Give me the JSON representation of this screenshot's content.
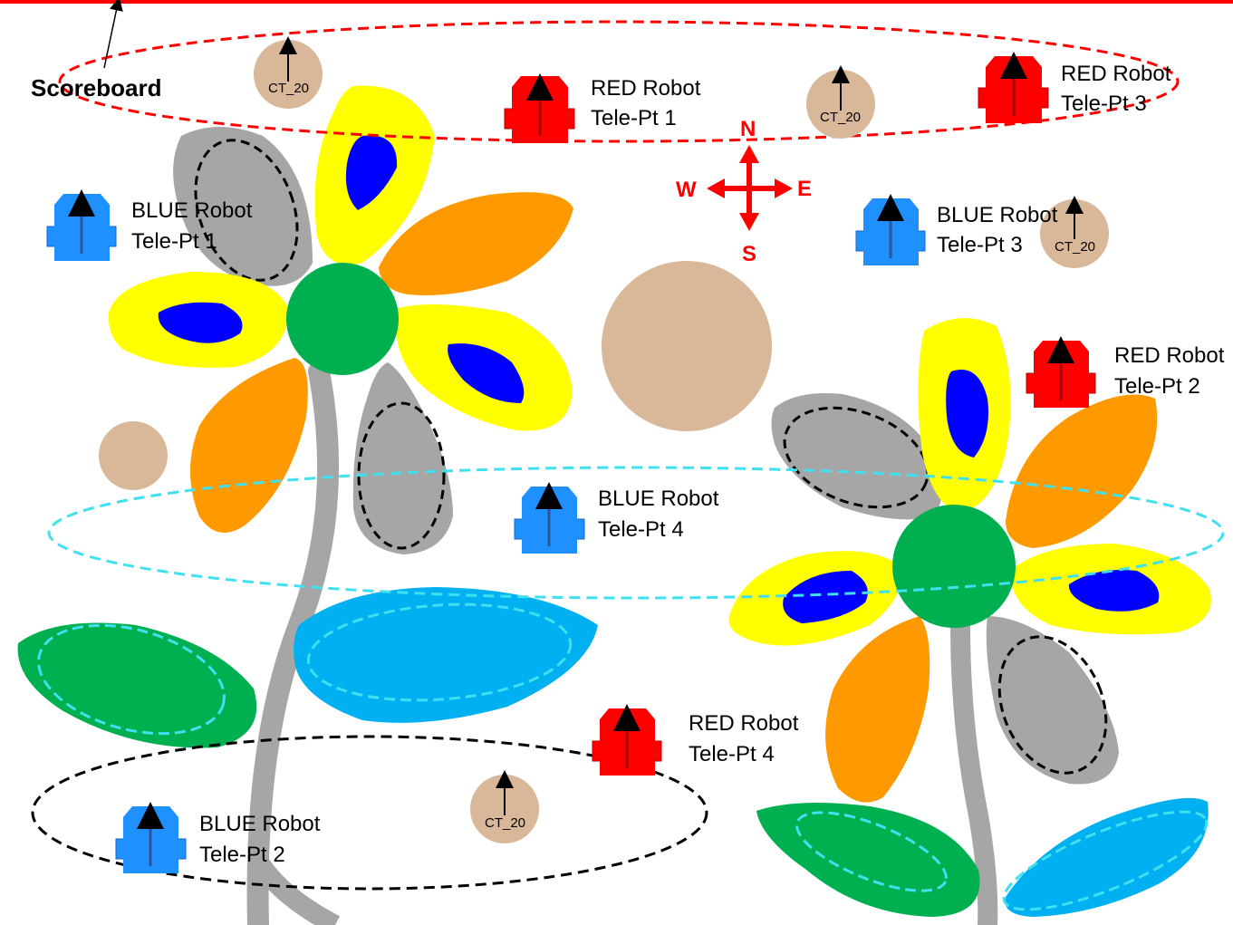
{
  "scoreboard": {
    "label": "Scoreboard"
  },
  "compass": {
    "n": "N",
    "s": "S",
    "e": "E",
    "w": "W"
  },
  "balls": {
    "label": "CT_20"
  },
  "robots": {
    "red1": {
      "name": "RED Robot",
      "point": "Tele-Pt 1"
    },
    "red2": {
      "name": "RED Robot",
      "point": "Tele-Pt 2"
    },
    "red3": {
      "name": "RED Robot",
      "point": "Tele-Pt 3"
    },
    "red4": {
      "name": "RED Robot",
      "point": "Tele-Pt 4"
    },
    "blue1": {
      "name": "BLUE Robot",
      "point": "Tele-Pt 1"
    },
    "blue2": {
      "name": "BLUE Robot",
      "point": "Tele-Pt 2"
    },
    "blue3": {
      "name": "BLUE Robot",
      "point": "Tele-Pt 3"
    },
    "blue4": {
      "name": "BLUE Robot",
      "point": "Tele-Pt 4"
    }
  },
  "colors": {
    "red_robot": "#ff0000",
    "blue_robot": "#1e90ff",
    "ball": "#d8b898",
    "petal_yellow": "#ffff00",
    "petal_orange": "#ff9900",
    "petal_gray": "#a6a6a6",
    "center_green": "#00b050",
    "inner_blue": "#0000ff",
    "water": "#00b0f0",
    "leaf": "#00b050"
  }
}
